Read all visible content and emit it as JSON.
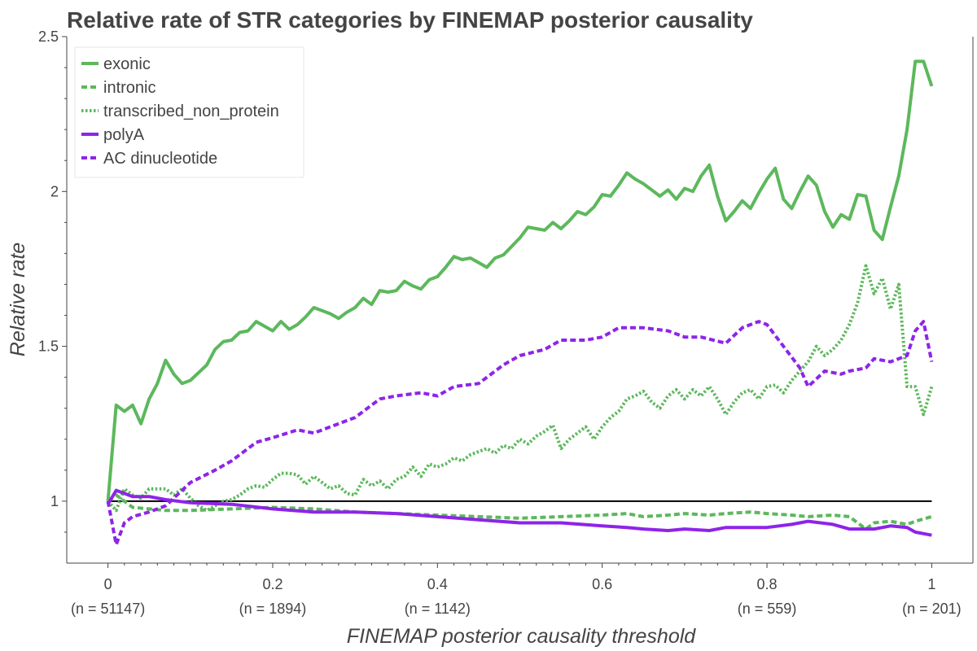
{
  "chart_data": {
    "type": "line",
    "title": "Relative rate of STR categories by FINEMAP posterior causality",
    "xlabel": "FINEMAP posterior causality threshold",
    "ylabel": "Relative rate",
    "xlim": [
      -0.05,
      1.05
    ],
    "ylim": [
      0.8,
      2.5
    ],
    "xticks": [
      0,
      0.2,
      0.4,
      0.6,
      0.8,
      1
    ],
    "xtick_labels": [
      "0",
      "0.2",
      "0.4",
      "0.6",
      "0.8",
      "1"
    ],
    "yticks": [
      1,
      1.5,
      2,
      2.5
    ],
    "ytick_labels": [
      "1",
      "1.5",
      "2",
      "2.5"
    ],
    "n_labels": [
      {
        "x": 0,
        "label": "(n = 51147)"
      },
      {
        "x": 0.2,
        "label": "(n = 1894)"
      },
      {
        "x": 0.4,
        "label": "(n = 1142)"
      },
      {
        "x": 0.8,
        "label": "(n = 559)"
      },
      {
        "x": 1,
        "label": "(n = 201)"
      }
    ],
    "reference_line": {
      "y": 1,
      "x": [
        0,
        1
      ],
      "color": "#000000"
    },
    "legend_position": "top-left",
    "grid": false,
    "series": [
      {
        "name": "exonic",
        "color": "#5cb85c",
        "dash": "solid",
        "x": [
          0,
          0.01,
          0.02,
          0.03,
          0.04,
          0.05,
          0.06,
          0.07,
          0.08,
          0.09,
          0.1,
          0.12,
          0.13,
          0.14,
          0.15,
          0.16,
          0.17,
          0.18,
          0.2,
          0.21,
          0.22,
          0.23,
          0.24,
          0.25,
          0.26,
          0.27,
          0.28,
          0.29,
          0.3,
          0.31,
          0.32,
          0.33,
          0.34,
          0.35,
          0.36,
          0.37,
          0.38,
          0.39,
          0.4,
          0.41,
          0.42,
          0.43,
          0.44,
          0.45,
          0.46,
          0.47,
          0.48,
          0.5,
          0.51,
          0.52,
          0.53,
          0.54,
          0.55,
          0.56,
          0.57,
          0.58,
          0.59,
          0.6,
          0.61,
          0.62,
          0.63,
          0.64,
          0.65,
          0.66,
          0.67,
          0.68,
          0.69,
          0.7,
          0.71,
          0.72,
          0.73,
          0.74,
          0.75,
          0.76,
          0.77,
          0.78,
          0.79,
          0.8,
          0.81,
          0.82,
          0.83,
          0.84,
          0.85,
          0.86,
          0.87,
          0.88,
          0.89,
          0.9,
          0.91,
          0.92,
          0.93,
          0.94,
          0.95,
          0.96,
          0.97,
          0.98,
          0.99,
          1.0
        ],
        "y": [
          1.0,
          1.31,
          1.29,
          1.31,
          1.25,
          1.33,
          1.38,
          1.455,
          1.41,
          1.38,
          1.39,
          1.44,
          1.49,
          1.515,
          1.52,
          1.545,
          1.55,
          1.58,
          1.55,
          1.58,
          1.555,
          1.57,
          1.595,
          1.625,
          1.615,
          1.605,
          1.59,
          1.61,
          1.625,
          1.655,
          1.635,
          1.68,
          1.675,
          1.68,
          1.71,
          1.695,
          1.685,
          1.715,
          1.725,
          1.755,
          1.79,
          1.78,
          1.785,
          1.77,
          1.755,
          1.785,
          1.795,
          1.85,
          1.885,
          1.88,
          1.875,
          1.9,
          1.88,
          1.905,
          1.935,
          1.925,
          1.95,
          1.99,
          1.985,
          2.02,
          2.06,
          2.04,
          2.025,
          2.005,
          1.985,
          2.005,
          1.975,
          2.01,
          2.0,
          2.05,
          2.085,
          1.985,
          1.905,
          1.935,
          1.97,
          1.945,
          1.995,
          2.04,
          2.075,
          1.975,
          1.945,
          2.0,
          2.05,
          2.02,
          1.935,
          1.885,
          1.925,
          1.91,
          1.99,
          1.985,
          1.875,
          1.845,
          1.95,
          2.05,
          2.2,
          2.42,
          2.42,
          2.34
        ]
      },
      {
        "name": "intronic",
        "color": "#5cb85c",
        "dash": "dashed",
        "x": [
          0,
          0.01,
          0.02,
          0.03,
          0.05,
          0.07,
          0.1,
          0.15,
          0.2,
          0.25,
          0.3,
          0.35,
          0.4,
          0.45,
          0.5,
          0.55,
          0.6,
          0.63,
          0.65,
          0.68,
          0.7,
          0.73,
          0.75,
          0.78,
          0.8,
          0.83,
          0.85,
          0.88,
          0.9,
          0.92,
          0.93,
          0.95,
          0.97,
          0.98,
          1.0
        ],
        "y": [
          1.0,
          1.02,
          1.0,
          0.98,
          0.975,
          0.97,
          0.97,
          0.975,
          0.98,
          0.975,
          0.965,
          0.96,
          0.955,
          0.95,
          0.945,
          0.95,
          0.955,
          0.96,
          0.95,
          0.955,
          0.96,
          0.955,
          0.96,
          0.965,
          0.96,
          0.955,
          0.95,
          0.955,
          0.95,
          0.91,
          0.93,
          0.935,
          0.925,
          0.935,
          0.95
        ]
      },
      {
        "name": "transcribed_non_protein",
        "color": "#5cb85c",
        "dash": "dotted",
        "x": [
          0,
          0.01,
          0.02,
          0.03,
          0.04,
          0.05,
          0.06,
          0.07,
          0.08,
          0.09,
          0.1,
          0.11,
          0.12,
          0.13,
          0.14,
          0.15,
          0.16,
          0.17,
          0.18,
          0.19,
          0.2,
          0.21,
          0.22,
          0.23,
          0.24,
          0.25,
          0.26,
          0.27,
          0.28,
          0.29,
          0.3,
          0.31,
          0.32,
          0.33,
          0.34,
          0.35,
          0.36,
          0.37,
          0.38,
          0.39,
          0.4,
          0.41,
          0.42,
          0.43,
          0.44,
          0.45,
          0.46,
          0.47,
          0.48,
          0.49,
          0.5,
          0.51,
          0.52,
          0.53,
          0.54,
          0.55,
          0.56,
          0.57,
          0.58,
          0.59,
          0.6,
          0.61,
          0.62,
          0.63,
          0.64,
          0.65,
          0.66,
          0.67,
          0.68,
          0.69,
          0.7,
          0.71,
          0.72,
          0.73,
          0.74,
          0.75,
          0.76,
          0.77,
          0.78,
          0.79,
          0.8,
          0.81,
          0.82,
          0.83,
          0.84,
          0.85,
          0.86,
          0.87,
          0.88,
          0.89,
          0.9,
          0.91,
          0.92,
          0.93,
          0.94,
          0.95,
          0.96,
          0.97,
          0.98,
          0.99,
          1.0
        ],
        "y": [
          1.0,
          0.97,
          1.04,
          1.02,
          1.01,
          1.04,
          1.04,
          1.04,
          1.02,
          1.04,
          1.01,
          0.985,
          0.97,
          0.985,
          1.0,
          1.005,
          1.02,
          1.04,
          1.05,
          1.045,
          1.07,
          1.09,
          1.09,
          1.085,
          1.055,
          1.08,
          1.06,
          1.04,
          1.05,
          1.025,
          1.02,
          1.07,
          1.05,
          1.065,
          1.04,
          1.07,
          1.08,
          1.11,
          1.08,
          1.12,
          1.11,
          1.12,
          1.14,
          1.13,
          1.15,
          1.16,
          1.17,
          1.155,
          1.18,
          1.17,
          1.2,
          1.185,
          1.21,
          1.225,
          1.245,
          1.17,
          1.2,
          1.22,
          1.24,
          1.2,
          1.24,
          1.27,
          1.29,
          1.33,
          1.34,
          1.355,
          1.32,
          1.3,
          1.34,
          1.36,
          1.33,
          1.36,
          1.34,
          1.37,
          1.33,
          1.28,
          1.32,
          1.35,
          1.36,
          1.33,
          1.37,
          1.375,
          1.35,
          1.39,
          1.42,
          1.45,
          1.5,
          1.47,
          1.49,
          1.52,
          1.57,
          1.64,
          1.76,
          1.67,
          1.72,
          1.62,
          1.7,
          1.37,
          1.37,
          1.28,
          1.37
        ]
      },
      {
        "name": "polyA",
        "color": "#8e24e8",
        "dash": "solid",
        "x": [
          0,
          0.01,
          0.02,
          0.03,
          0.05,
          0.07,
          0.1,
          0.15,
          0.2,
          0.25,
          0.3,
          0.35,
          0.4,
          0.45,
          0.5,
          0.55,
          0.6,
          0.63,
          0.65,
          0.68,
          0.7,
          0.73,
          0.75,
          0.78,
          0.8,
          0.83,
          0.85,
          0.88,
          0.9,
          0.92,
          0.93,
          0.95,
          0.97,
          0.98,
          1.0
        ],
        "y": [
          0.99,
          1.035,
          1.025,
          1.015,
          1.015,
          1.005,
          0.995,
          0.99,
          0.975,
          0.965,
          0.965,
          0.96,
          0.95,
          0.94,
          0.93,
          0.93,
          0.92,
          0.915,
          0.91,
          0.905,
          0.91,
          0.905,
          0.915,
          0.915,
          0.915,
          0.925,
          0.935,
          0.925,
          0.91,
          0.91,
          0.91,
          0.92,
          0.915,
          0.9,
          0.89
        ]
      },
      {
        "name": "AC dinucleotide",
        "color": "#8e24e8",
        "dash": "dashed",
        "x": [
          0,
          0.01,
          0.02,
          0.03,
          0.05,
          0.07,
          0.1,
          0.13,
          0.15,
          0.18,
          0.2,
          0.23,
          0.25,
          0.28,
          0.3,
          0.33,
          0.35,
          0.38,
          0.4,
          0.42,
          0.45,
          0.48,
          0.5,
          0.53,
          0.55,
          0.58,
          0.6,
          0.62,
          0.65,
          0.68,
          0.7,
          0.72,
          0.75,
          0.77,
          0.78,
          0.79,
          0.8,
          0.82,
          0.84,
          0.85,
          0.87,
          0.89,
          0.9,
          0.92,
          0.93,
          0.95,
          0.97,
          0.98,
          0.99,
          1.0
        ],
        "y": [
          1.0,
          0.86,
          0.93,
          0.95,
          0.965,
          0.985,
          1.06,
          1.1,
          1.13,
          1.19,
          1.205,
          1.23,
          1.22,
          1.25,
          1.27,
          1.33,
          1.34,
          1.35,
          1.34,
          1.37,
          1.38,
          1.44,
          1.47,
          1.49,
          1.52,
          1.52,
          1.53,
          1.56,
          1.56,
          1.55,
          1.53,
          1.53,
          1.51,
          1.56,
          1.57,
          1.58,
          1.57,
          1.5,
          1.43,
          1.37,
          1.42,
          1.41,
          1.42,
          1.43,
          1.46,
          1.45,
          1.47,
          1.55,
          1.58,
          1.45
        ]
      }
    ]
  }
}
